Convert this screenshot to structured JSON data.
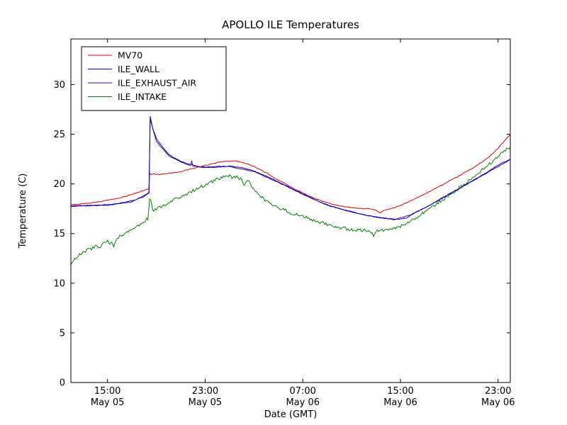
{
  "chart_data": {
    "type": "line",
    "title": "APOLLO ILE Temperatures",
    "xlabel": "Date (GMT)",
    "ylabel": "Temperature (C)",
    "x_axis_note": "hours from plot start (May 05 ~12:00 GMT) to May 06 ~24:00 GMT",
    "xlim": [
      0,
      36
    ],
    "ylim": [
      0,
      34.6
    ],
    "yticks": [
      0,
      5,
      10,
      15,
      20,
      25,
      30
    ],
    "xticks": [
      {
        "t": 3,
        "time": "15:00",
        "date": "May 05"
      },
      {
        "t": 11,
        "time": "23:00",
        "date": "May 05"
      },
      {
        "t": 19,
        "time": "07:00",
        "date": "May 06"
      },
      {
        "t": 27,
        "time": "15:00",
        "date": "May 06"
      },
      {
        "t": 35,
        "time": "23:00",
        "date": "May 06"
      }
    ],
    "grid": false,
    "legend": {
      "position": "upper left"
    },
    "draw_order": [
      2,
      0,
      1,
      3
    ],
    "series": [
      {
        "name": "MV70",
        "color": "#dd0000",
        "noise": 0.04,
        "points": [
          [
            0,
            17.9
          ],
          [
            1,
            18.0
          ],
          [
            2,
            18.15
          ],
          [
            3,
            18.35
          ],
          [
            4,
            18.6
          ],
          [
            4.5,
            18.75
          ],
          [
            5,
            18.95
          ],
          [
            5.5,
            19.15
          ],
          [
            6,
            19.35
          ],
          [
            6.4,
            19.55
          ],
          [
            6.45,
            21.1
          ],
          [
            6.6,
            20.9
          ],
          [
            6.8,
            21.05
          ],
          [
            7,
            20.95
          ],
          [
            7.5,
            21.0
          ],
          [
            8,
            21.05
          ],
          [
            8.5,
            21.15
          ],
          [
            9,
            21.25
          ],
          [
            9.5,
            21.4
          ],
          [
            10,
            21.55
          ],
          [
            10.5,
            21.7
          ],
          [
            11,
            21.85
          ],
          [
            11.5,
            22.0
          ],
          [
            12,
            22.15
          ],
          [
            12.5,
            22.25
          ],
          [
            13,
            22.3
          ],
          [
            13.5,
            22.3
          ],
          [
            14,
            22.2
          ],
          [
            14.5,
            22.0
          ],
          [
            15,
            21.75
          ],
          [
            15.5,
            21.45
          ],
          [
            16,
            21.1
          ],
          [
            16.5,
            20.75
          ],
          [
            17,
            20.4
          ],
          [
            17.5,
            20.05
          ],
          [
            18,
            19.7
          ],
          [
            18.5,
            19.4
          ],
          [
            19,
            19.1
          ],
          [
            19.5,
            18.8
          ],
          [
            20,
            18.55
          ],
          [
            20.5,
            18.3
          ],
          [
            21,
            18.1
          ],
          [
            21.5,
            17.95
          ],
          [
            22,
            17.8
          ],
          [
            22.5,
            17.7
          ],
          [
            23,
            17.6
          ],
          [
            23.5,
            17.55
          ],
          [
            24,
            17.5
          ],
          [
            24.3,
            17.55
          ],
          [
            24.6,
            17.45
          ],
          [
            25,
            17.35
          ],
          [
            25.3,
            17.1
          ],
          [
            25.6,
            17.3
          ],
          [
            26,
            17.45
          ],
          [
            26.5,
            17.6
          ],
          [
            27,
            17.85
          ],
          [
            27.5,
            18.1
          ],
          [
            28,
            18.4
          ],
          [
            28.5,
            18.7
          ],
          [
            29,
            19.0
          ],
          [
            29.5,
            19.3
          ],
          [
            30,
            19.65
          ],
          [
            30.5,
            19.95
          ],
          [
            31,
            20.3
          ],
          [
            31.5,
            20.6
          ],
          [
            32,
            20.95
          ],
          [
            32.5,
            21.3
          ],
          [
            33,
            21.65
          ],
          [
            33.5,
            22.05
          ],
          [
            34,
            22.5
          ],
          [
            34.5,
            23.0
          ],
          [
            35,
            23.6
          ],
          [
            35.5,
            24.3
          ],
          [
            36,
            25.0
          ]
        ]
      },
      {
        "name": "ILE_WALL",
        "color": "#0000cc",
        "noise": 0.03,
        "points": [
          [
            0,
            17.8
          ],
          [
            2,
            17.85
          ],
          [
            3,
            17.9
          ],
          [
            4,
            18.05
          ],
          [
            5,
            18.3
          ],
          [
            6,
            18.7
          ],
          [
            6.4,
            19.2
          ],
          [
            6.5,
            26.8
          ],
          [
            6.7,
            25.6
          ],
          [
            7,
            24.6
          ],
          [
            7.5,
            23.7
          ],
          [
            8,
            23.0
          ],
          [
            8.5,
            22.6
          ],
          [
            9,
            22.3
          ],
          [
            9.5,
            22.05
          ],
          [
            10,
            21.9
          ],
          [
            10.5,
            21.75
          ],
          [
            11,
            21.7
          ],
          [
            12,
            21.75
          ],
          [
            13,
            21.8
          ],
          [
            14,
            21.65
          ],
          [
            15,
            21.3
          ],
          [
            16,
            20.8
          ],
          [
            17,
            20.2
          ],
          [
            18,
            19.6
          ],
          [
            19,
            19.0
          ],
          [
            20,
            18.4
          ],
          [
            21,
            17.9
          ],
          [
            22,
            17.5
          ],
          [
            23,
            17.2
          ],
          [
            24,
            16.9
          ],
          [
            25,
            16.7
          ],
          [
            26,
            16.5
          ],
          [
            26.8,
            16.42
          ],
          [
            27.5,
            16.55
          ],
          [
            28,
            17.0
          ],
          [
            29,
            17.6
          ],
          [
            30,
            18.3
          ],
          [
            31,
            19.0
          ],
          [
            32,
            19.7
          ],
          [
            33,
            20.4
          ],
          [
            34,
            21.1
          ],
          [
            35,
            21.9
          ],
          [
            36,
            22.5
          ]
        ]
      },
      {
        "name": "ILE_EXHAUST_AIR",
        "color": "#4b0082",
        "noise": 0.03,
        "points": [
          [
            0,
            17.75
          ],
          [
            3,
            17.85
          ],
          [
            5,
            18.2
          ],
          [
            6.4,
            19.1
          ],
          [
            6.5,
            26.5
          ],
          [
            7,
            24.3
          ],
          [
            8,
            22.85
          ],
          [
            9,
            22.2
          ],
          [
            9.8,
            21.85
          ],
          [
            9.9,
            22.3
          ],
          [
            10,
            21.8
          ],
          [
            11,
            21.65
          ],
          [
            13,
            21.75
          ],
          [
            15,
            21.25
          ],
          [
            17,
            20.15
          ],
          [
            19,
            18.95
          ],
          [
            21,
            17.85
          ],
          [
            23,
            17.15
          ],
          [
            25,
            16.65
          ],
          [
            26.5,
            16.4
          ],
          [
            28,
            16.95
          ],
          [
            30,
            18.25
          ],
          [
            32,
            19.65
          ],
          [
            34,
            21.05
          ],
          [
            36,
            22.45
          ]
        ]
      },
      {
        "name": "ILE_INTAKE",
        "color": "#008000",
        "noise": 0.16,
        "points": [
          [
            0,
            11.9
          ],
          [
            0.3,
            12.4
          ],
          [
            0.6,
            12.8
          ],
          [
            1,
            13.1
          ],
          [
            1.3,
            13.3
          ],
          [
            1.6,
            13.4
          ],
          [
            2,
            13.7
          ],
          [
            2.3,
            13.6
          ],
          [
            2.6,
            13.9
          ],
          [
            3,
            14.2
          ],
          [
            3.3,
            14.0
          ],
          [
            3.5,
            13.8
          ],
          [
            3.7,
            14.3
          ],
          [
            4,
            14.7
          ],
          [
            4.5,
            15.0
          ],
          [
            5,
            15.4
          ],
          [
            5.5,
            15.8
          ],
          [
            6,
            16.2
          ],
          [
            6.3,
            16.5
          ],
          [
            6.45,
            18.4
          ],
          [
            6.55,
            18.5
          ],
          [
            6.7,
            17.3
          ],
          [
            7,
            17.5
          ],
          [
            7.5,
            17.8
          ],
          [
            8,
            18.1
          ],
          [
            8.5,
            18.4
          ],
          [
            9,
            18.7
          ],
          [
            9.5,
            19.0
          ],
          [
            10,
            19.3
          ],
          [
            10.5,
            19.6
          ],
          [
            11,
            19.9
          ],
          [
            11.5,
            20.2
          ],
          [
            12,
            20.5
          ],
          [
            12.5,
            20.7
          ],
          [
            13,
            20.8
          ],
          [
            13.3,
            20.6
          ],
          [
            13.6,
            20.7
          ],
          [
            14,
            20.4
          ],
          [
            14.2,
            19.9
          ],
          [
            14.4,
            20.3
          ],
          [
            14.6,
            20.2
          ],
          [
            15,
            19.5
          ],
          [
            15.5,
            18.8
          ],
          [
            16,
            18.3
          ],
          [
            16.5,
            17.9
          ],
          [
            17,
            17.6
          ],
          [
            17.5,
            17.4
          ],
          [
            18,
            17.1
          ],
          [
            18.5,
            16.9
          ],
          [
            19,
            16.7
          ],
          [
            19.5,
            16.5
          ],
          [
            20,
            16.3
          ],
          [
            20.5,
            16.1
          ],
          [
            21,
            15.9
          ],
          [
            21.5,
            15.75
          ],
          [
            22,
            15.6
          ],
          [
            22.5,
            15.5
          ],
          [
            23,
            15.4
          ],
          [
            23.5,
            15.35
          ],
          [
            24,
            15.3
          ],
          [
            24.5,
            15.25
          ],
          [
            24.8,
            14.85
          ],
          [
            25,
            15.2
          ],
          [
            25.5,
            15.3
          ],
          [
            26,
            15.4
          ],
          [
            26.5,
            15.5
          ],
          [
            27,
            15.75
          ],
          [
            27.5,
            16.05
          ],
          [
            28,
            16.4
          ],
          [
            28.5,
            16.8
          ],
          [
            29,
            17.2
          ],
          [
            29.5,
            17.6
          ],
          [
            30,
            18.0
          ],
          [
            30.5,
            18.4
          ],
          [
            31,
            18.8
          ],
          [
            31.5,
            19.3
          ],
          [
            32,
            19.8
          ],
          [
            32.5,
            20.25
          ],
          [
            33,
            20.7
          ],
          [
            33.5,
            21.2
          ],
          [
            34,
            21.7
          ],
          [
            34.5,
            22.2
          ],
          [
            35,
            22.8
          ],
          [
            35.5,
            23.3
          ],
          [
            36,
            23.7
          ]
        ]
      }
    ]
  }
}
